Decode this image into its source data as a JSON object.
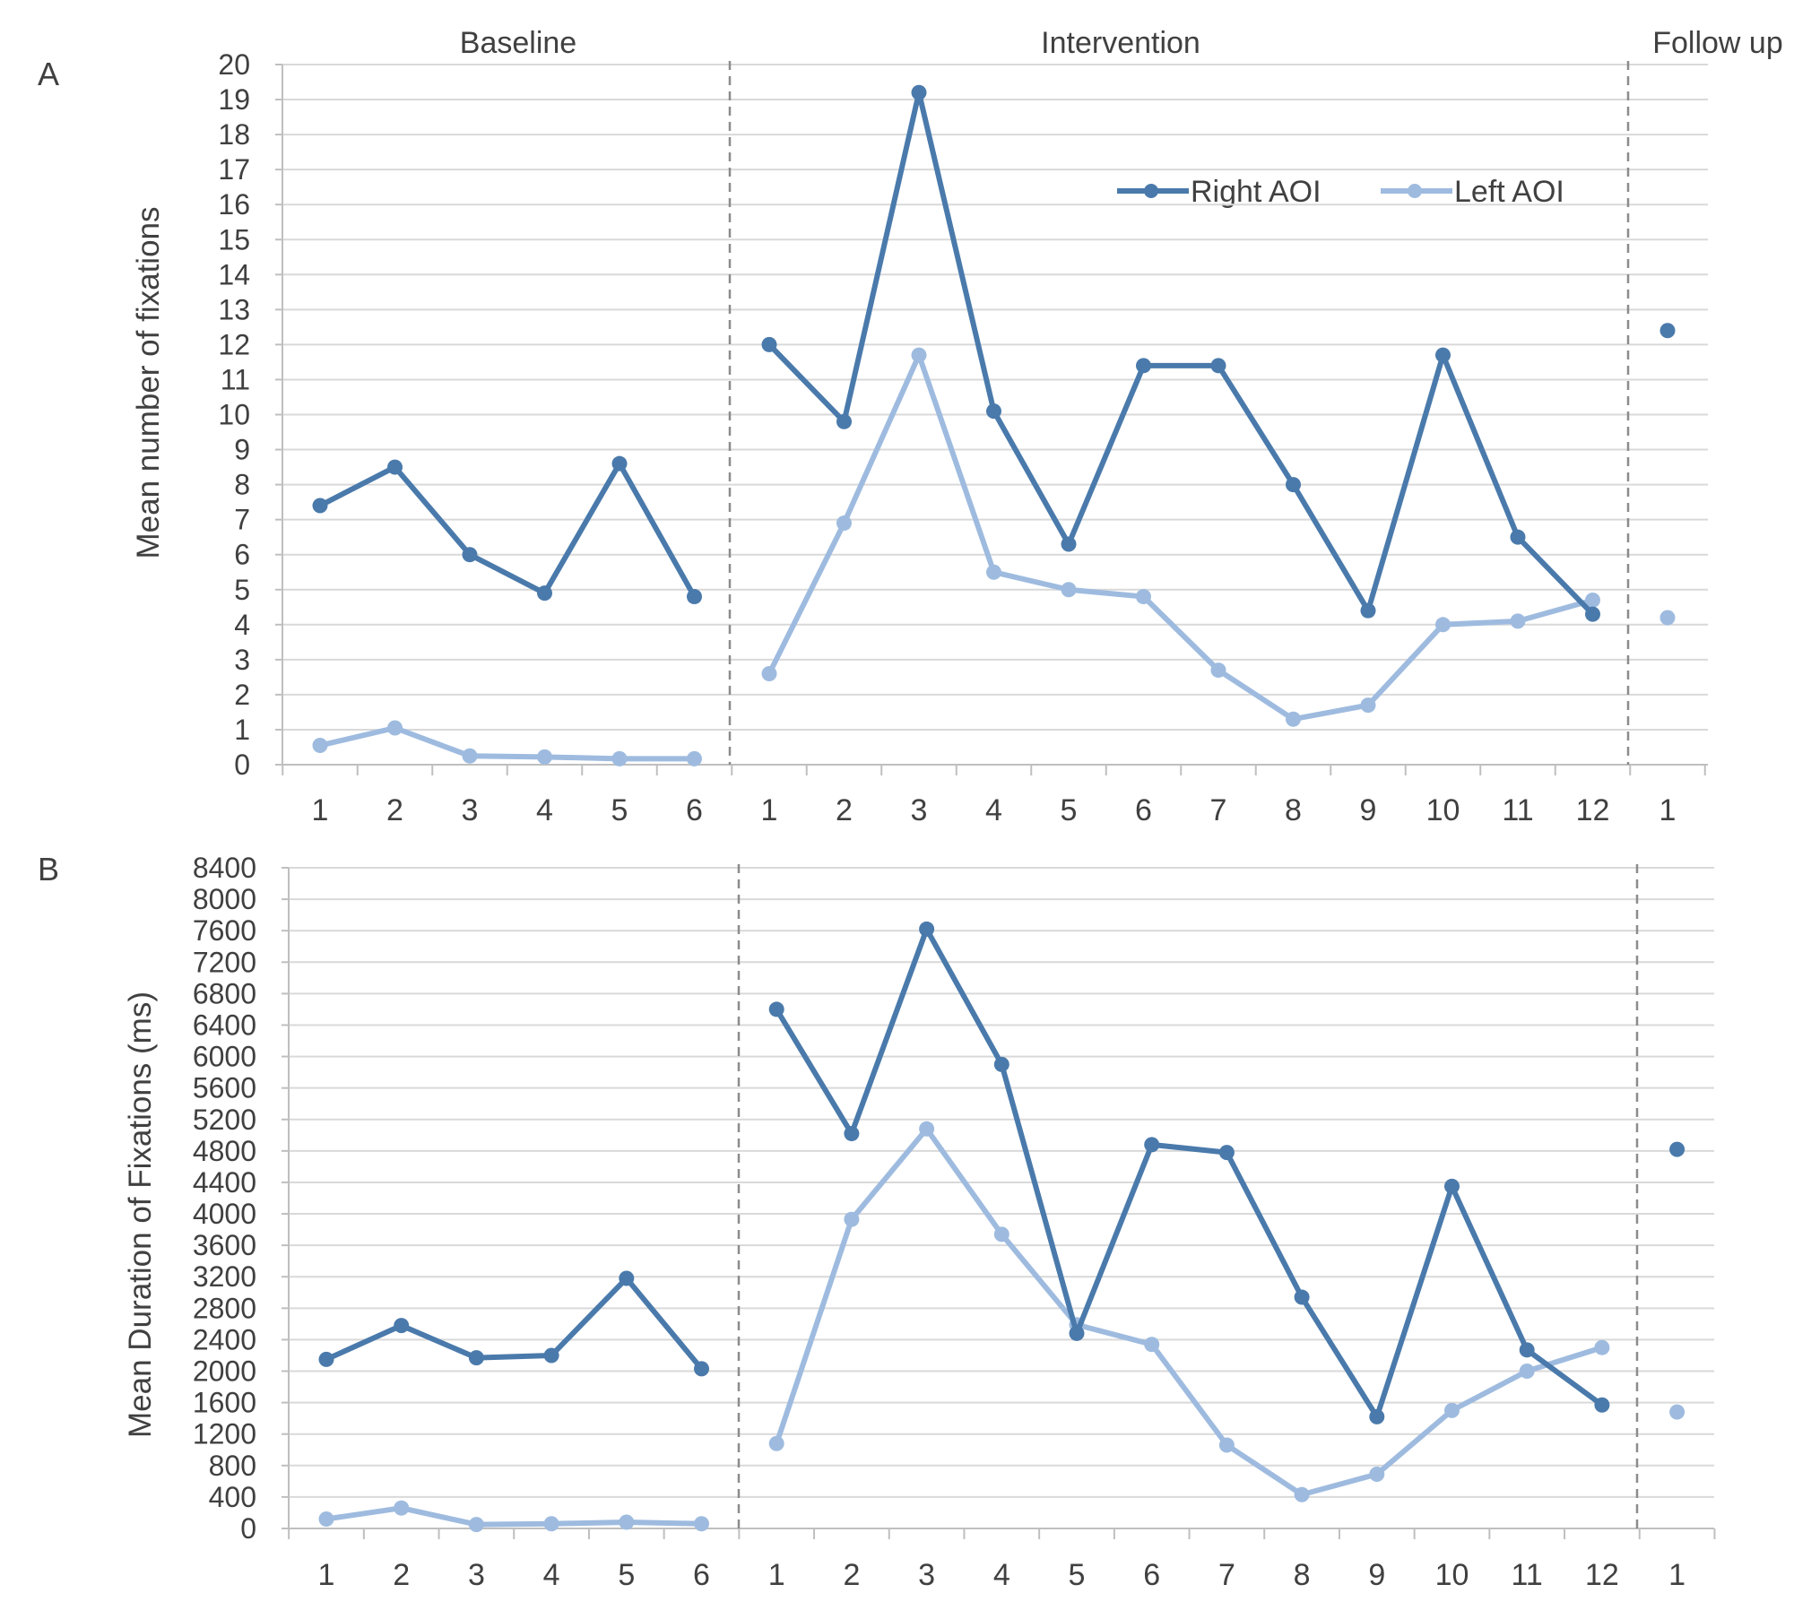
{
  "colors": {
    "right": "#4a7aab",
    "left": "#9ebbdf",
    "grid": "#d9d9d9",
    "axis": "#bfbfbf",
    "divider": "#8c8c8c",
    "text": "#404040"
  },
  "phases": {
    "baseline": "Baseline",
    "intervention": "Intervention",
    "followup": "Follow up"
  },
  "legend": {
    "right": "Right AOI",
    "left": "Left AOI"
  },
  "chart_data": [
    {
      "type": "line",
      "panel_label": "A",
      "ylabel": "Mean number of fixations",
      "ylim": [
        0,
        20
      ],
      "ystep": 1,
      "grid": true,
      "legend_position": "top-right",
      "x_groups": [
        {
          "phase": "Baseline",
          "ticks": [
            "1",
            "2",
            "3",
            "4",
            "5",
            "6"
          ]
        },
        {
          "phase": "Intervention",
          "ticks": [
            "1",
            "2",
            "3",
            "4",
            "5",
            "6",
            "7",
            "8",
            "9",
            "10",
            "11",
            "12"
          ]
        },
        {
          "phase": "Follow up",
          "ticks": [
            "1"
          ]
        }
      ],
      "series": [
        {
          "name": "Right AOI",
          "values": [
            [
              7.4,
              8.5,
              6.0,
              4.9,
              8.6,
              4.8
            ],
            [
              12.0,
              9.8,
              19.2,
              10.1,
              6.3,
              11.4,
              11.4,
              8.0,
              4.4,
              11.7,
              6.5,
              4.3
            ],
            [
              12.4
            ]
          ]
        },
        {
          "name": "Left AOI",
          "values": [
            [
              0.55,
              1.05,
              0.25,
              0.22,
              0.17,
              0.17
            ],
            [
              2.6,
              6.9,
              11.7,
              5.5,
              5.0,
              4.8,
              2.7,
              1.3,
              1.7,
              4.0,
              4.1,
              4.7
            ],
            [
              4.2
            ]
          ]
        }
      ]
    },
    {
      "type": "line",
      "panel_label": "B",
      "ylabel": "Mean Duration of Fixations (ms)",
      "ylim": [
        0,
        8400
      ],
      "ystep": 400,
      "grid": true,
      "x_groups": [
        {
          "phase": "Baseline",
          "ticks": [
            "1",
            "2",
            "3",
            "4",
            "5",
            "6"
          ]
        },
        {
          "phase": "Intervention",
          "ticks": [
            "1",
            "2",
            "3",
            "4",
            "5",
            "6",
            "7",
            "8",
            "9",
            "10",
            "11",
            "12"
          ]
        },
        {
          "phase": "Follow up",
          "ticks": [
            "1"
          ]
        }
      ],
      "series": [
        {
          "name": "Right AOI",
          "values": [
            [
              2150,
              2580,
              2170,
              2200,
              3180,
              2030
            ],
            [
              6600,
              5020,
              7620,
              5900,
              2480,
              4880,
              4780,
              2940,
              1420,
              4350,
              2270,
              1570
            ],
            [
              4820
            ]
          ]
        },
        {
          "name": "Left AOI",
          "values": [
            [
              120,
              260,
              50,
              60,
              80,
              60
            ],
            [
              1080,
              3930,
              5080,
              3740,
              2590,
              2340,
              1060,
              430,
              690,
              1500,
              2000,
              2300
            ],
            [
              1480
            ]
          ]
        }
      ]
    }
  ]
}
